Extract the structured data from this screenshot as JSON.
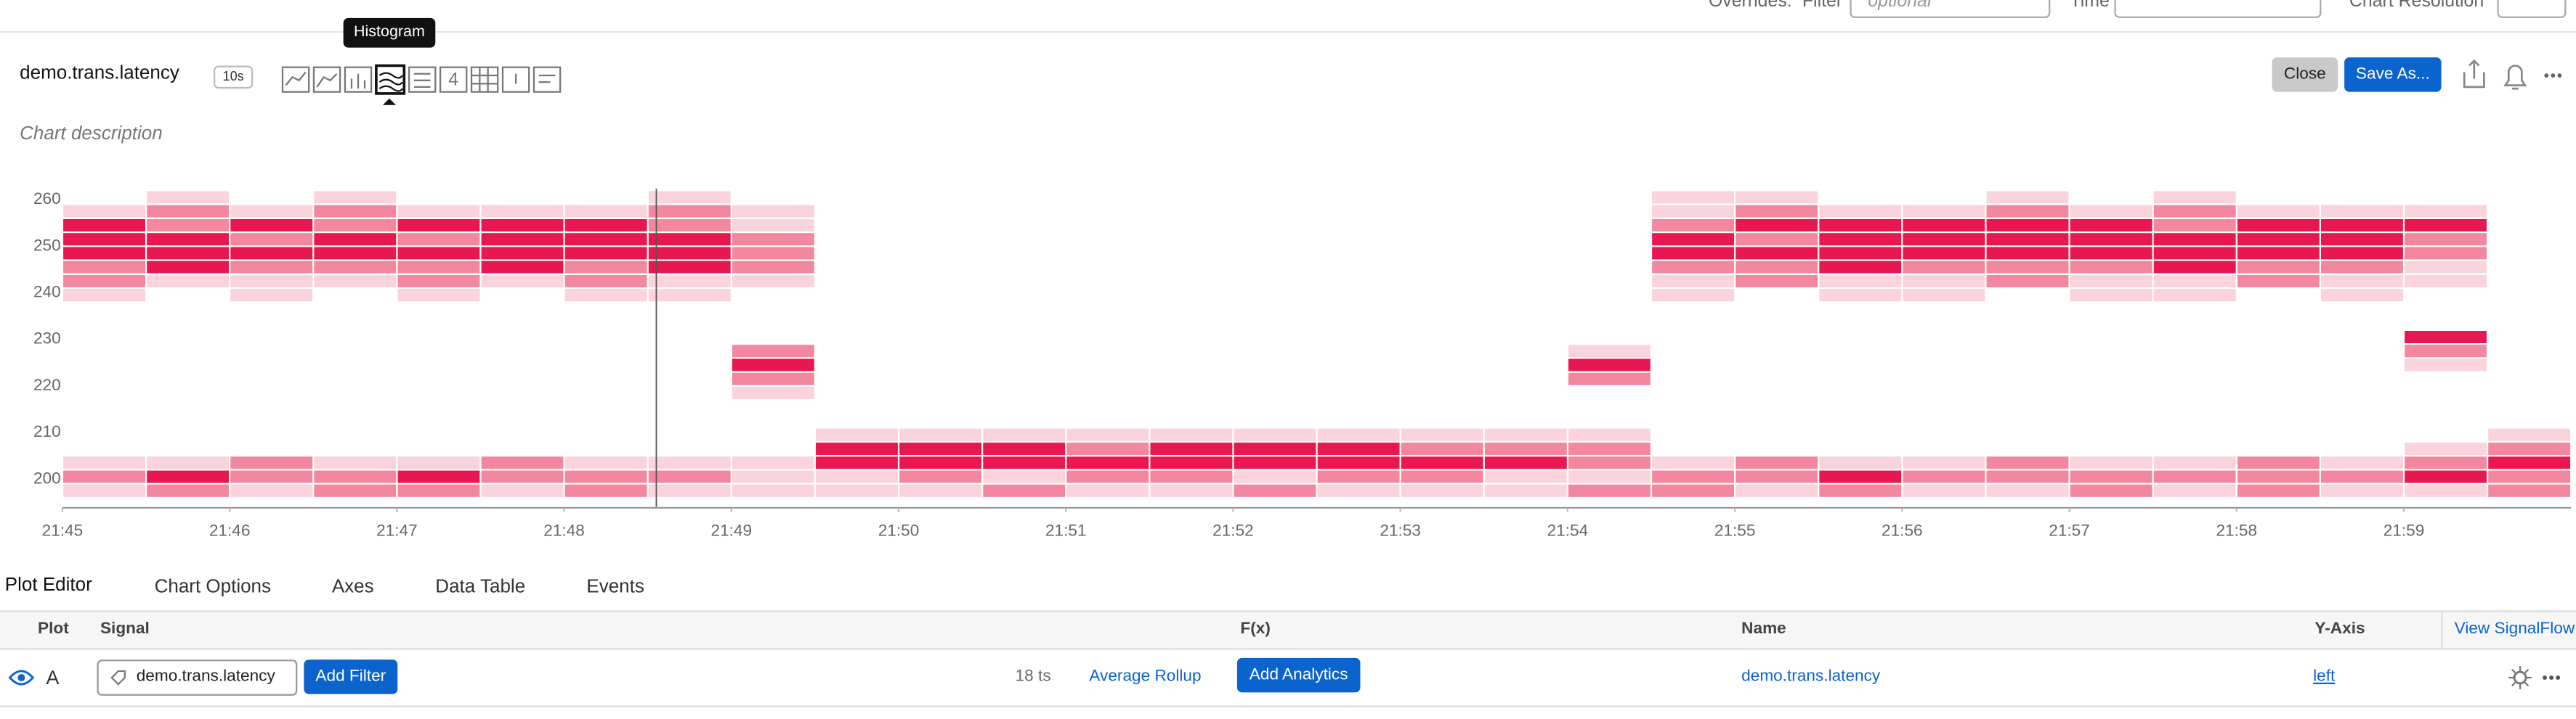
{
  "top_bar": {
    "overrides": "Overrides:",
    "filter": "Filter",
    "filter_placeholder": "optional",
    "time": "Time",
    "chart_resolution": "Chart Resolution"
  },
  "header": {
    "title": "demo.trans.latency",
    "resolution": "10s",
    "tooltip": "Histogram",
    "close": "Close",
    "save_as": "Save As...",
    "description": "Chart description"
  },
  "chart_data": {
    "type": "heatmap",
    "xbins": [
      45,
      45.5,
      46,
      46.5,
      47,
      47.5,
      48,
      48.5,
      49,
      49.5,
      50,
      50.5,
      51,
      51.5,
      52,
      52.5,
      53,
      53.5,
      54,
      54.5,
      55,
      55.5,
      56,
      56.5,
      57,
      57.5,
      58,
      58.5,
      59,
      59.5,
      60
    ],
    "ybins": [
      196,
      199,
      202,
      205,
      208,
      211,
      214,
      217,
      220,
      223,
      226,
      229,
      232,
      235,
      238,
      241,
      244,
      247,
      250,
      253,
      256,
      259,
      262
    ],
    "values": [
      [
        1,
        2,
        1,
        2,
        2,
        1,
        2,
        1,
        1,
        1,
        1,
        2,
        1,
        1,
        2,
        1,
        1,
        1,
        2,
        2,
        1,
        2,
        1,
        1,
        2,
        1,
        2,
        1,
        1,
        2
      ],
      [
        2,
        3,
        2,
        2,
        3,
        2,
        2,
        2,
        1,
        1,
        2,
        1,
        2,
        2,
        1,
        2,
        2,
        1,
        1,
        2,
        2,
        3,
        2,
        2,
        2,
        2,
        2,
        2,
        3,
        2
      ],
      [
        1,
        1,
        2,
        1,
        1,
        2,
        1,
        1,
        1,
        3,
        3,
        3,
        3,
        3,
        3,
        3,
        3,
        3,
        2,
        1,
        2,
        1,
        1,
        2,
        1,
        1,
        2,
        1,
        2,
        3
      ],
      [
        0,
        0,
        0,
        0,
        0,
        0,
        0,
        0,
        0,
        3,
        3,
        3,
        2,
        3,
        3,
        3,
        2,
        2,
        2,
        0,
        0,
        0,
        0,
        0,
        0,
        0,
        0,
        0,
        1,
        2
      ],
      [
        0,
        0,
        0,
        0,
        0,
        0,
        0,
        0,
        0,
        1,
        1,
        1,
        1,
        1,
        1,
        1,
        1,
        1,
        1,
        0,
        0,
        0,
        0,
        0,
        0,
        0,
        0,
        0,
        0,
        1
      ],
      [
        0,
        0,
        0,
        0,
        0,
        0,
        0,
        0,
        0,
        0,
        0,
        0,
        0,
        0,
        0,
        0,
        0,
        0,
        0,
        0,
        0,
        0,
        0,
        0,
        0,
        0,
        0,
        0,
        0,
        0
      ],
      [
        0,
        0,
        0,
        0,
        0,
        0,
        0,
        0,
        0,
        0,
        0,
        0,
        0,
        0,
        0,
        0,
        0,
        0,
        0,
        0,
        0,
        0,
        0,
        0,
        0,
        0,
        0,
        0,
        0,
        0
      ],
      [
        0,
        0,
        0,
        0,
        0,
        0,
        0,
        0,
        1,
        0,
        0,
        0,
        0,
        0,
        0,
        0,
        0,
        0,
        0,
        0,
        0,
        0,
        0,
        0,
        0,
        0,
        0,
        0,
        0,
        0
      ],
      [
        0,
        0,
        0,
        0,
        0,
        0,
        0,
        0,
        2,
        0,
        0,
        0,
        0,
        0,
        0,
        0,
        0,
        0,
        2,
        0,
        0,
        0,
        0,
        0,
        0,
        0,
        0,
        0,
        0,
        0
      ],
      [
        0,
        0,
        0,
        0,
        0,
        0,
        0,
        0,
        3,
        0,
        0,
        0,
        0,
        0,
        0,
        0,
        0,
        0,
        3,
        0,
        0,
        0,
        0,
        0,
        0,
        0,
        0,
        0,
        1,
        0
      ],
      [
        0,
        0,
        0,
        0,
        0,
        0,
        0,
        0,
        2,
        0,
        0,
        0,
        0,
        0,
        0,
        0,
        0,
        0,
        1,
        0,
        0,
        0,
        0,
        0,
        0,
        0,
        0,
        0,
        2,
        0
      ],
      [
        0,
        0,
        0,
        0,
        0,
        0,
        0,
        0,
        0,
        0,
        0,
        0,
        0,
        0,
        0,
        0,
        0,
        0,
        0,
        0,
        0,
        0,
        0,
        0,
        0,
        0,
        0,
        0,
        3,
        0
      ],
      [
        0,
        0,
        0,
        0,
        0,
        0,
        0,
        0,
        0,
        0,
        0,
        0,
        0,
        0,
        0,
        0,
        0,
        0,
        0,
        0,
        0,
        0,
        0,
        0,
        0,
        0,
        0,
        0,
        0,
        0
      ],
      [
        0,
        0,
        0,
        0,
        0,
        0,
        0,
        0,
        0,
        0,
        0,
        0,
        0,
        0,
        0,
        0,
        0,
        0,
        0,
        0,
        0,
        0,
        0,
        0,
        0,
        0,
        0,
        0,
        0,
        0
      ],
      [
        1,
        0,
        1,
        0,
        1,
        0,
        1,
        1,
        0,
        0,
        0,
        0,
        0,
        0,
        0,
        0,
        0,
        0,
        0,
        1,
        0,
        1,
        1,
        0,
        1,
        1,
        0,
        1,
        0,
        0
      ],
      [
        2,
        1,
        1,
        1,
        2,
        1,
        2,
        1,
        1,
        0,
        0,
        0,
        0,
        0,
        0,
        0,
        0,
        0,
        0,
        1,
        2,
        1,
        1,
        2,
        1,
        1,
        2,
        1,
        1,
        0
      ],
      [
        2,
        3,
        2,
        2,
        2,
        3,
        2,
        3,
        2,
        0,
        0,
        0,
        0,
        0,
        0,
        0,
        0,
        0,
        0,
        2,
        2,
        3,
        2,
        2,
        2,
        3,
        2,
        2,
        1,
        0
      ],
      [
        3,
        3,
        3,
        3,
        3,
        3,
        3,
        3,
        2,
        0,
        0,
        0,
        0,
        0,
        0,
        0,
        0,
        0,
        0,
        3,
        3,
        3,
        3,
        3,
        3,
        3,
        3,
        3,
        2,
        0
      ],
      [
        3,
        3,
        2,
        3,
        2,
        3,
        3,
        3,
        2,
        0,
        0,
        0,
        0,
        0,
        0,
        0,
        0,
        0,
        0,
        3,
        2,
        3,
        3,
        3,
        3,
        3,
        3,
        3,
        2,
        0
      ],
      [
        3,
        2,
        3,
        2,
        3,
        3,
        3,
        2,
        1,
        0,
        0,
        0,
        0,
        0,
        0,
        0,
        0,
        0,
        0,
        2,
        3,
        3,
        3,
        3,
        3,
        2,
        3,
        3,
        3,
        0
      ],
      [
        1,
        2,
        1,
        2,
        1,
        1,
        1,
        2,
        1,
        0,
        0,
        0,
        0,
        0,
        0,
        0,
        0,
        0,
        0,
        1,
        2,
        1,
        1,
        2,
        1,
        2,
        1,
        1,
        1,
        0
      ],
      [
        0,
        1,
        0,
        1,
        0,
        0,
        0,
        1,
        0,
        0,
        0,
        0,
        0,
        0,
        0,
        0,
        0,
        0,
        0,
        1,
        1,
        0,
        0,
        1,
        0,
        1,
        0,
        0,
        0,
        0
      ]
    ],
    "colors": [
      "#ffffff",
      "#fbd3dc",
      "#f2879f",
      "#e8174f"
    ],
    "xlim": [
      45,
      60
    ],
    "xticks": [
      {
        "value": 45,
        "label": "21:45"
      },
      {
        "value": 46,
        "label": "21:46"
      },
      {
        "value": 47,
        "label": "21:47"
      },
      {
        "value": 48,
        "label": "21:48"
      },
      {
        "value": 49,
        "label": "21:49"
      },
      {
        "value": 50,
        "label": "21:50"
      },
      {
        "value": 51,
        "label": "21:51"
      },
      {
        "value": 52,
        "label": "21:52"
      },
      {
        "value": 53,
        "label": "21:53"
      },
      {
        "value": 54,
        "label": "21:54"
      },
      {
        "value": 55,
        "label": "21:55"
      },
      {
        "value": 56,
        "label": "21:56"
      },
      {
        "value": 57,
        "label": "21:57"
      },
      {
        "value": 58,
        "label": "21:58"
      },
      {
        "value": 59,
        "label": "21:59"
      }
    ],
    "ylim": [
      194,
      262
    ],
    "yticks": [
      200,
      210,
      220,
      230,
      240,
      250,
      260
    ],
    "grid": false
  },
  "tabs": [
    "Plot Editor",
    "Chart Options",
    "Axes",
    "Data Table",
    "Events"
  ],
  "plot_editor": {
    "columns": {
      "plot": "Plot",
      "signal": "Signal",
      "fx": "F(x)",
      "name": "Name",
      "y_axis": "Y-Axis"
    },
    "view_signalflow": "View SignalFlow",
    "rows": [
      {
        "plot": "A",
        "signal": "demo.trans.latency",
        "add_filter": "Add Filter",
        "ts": "18 ts",
        "rollup": "Average Rollup",
        "add_analytics": "Add Analytics",
        "name": "demo.trans.latency",
        "y_axis": "left"
      }
    ]
  }
}
